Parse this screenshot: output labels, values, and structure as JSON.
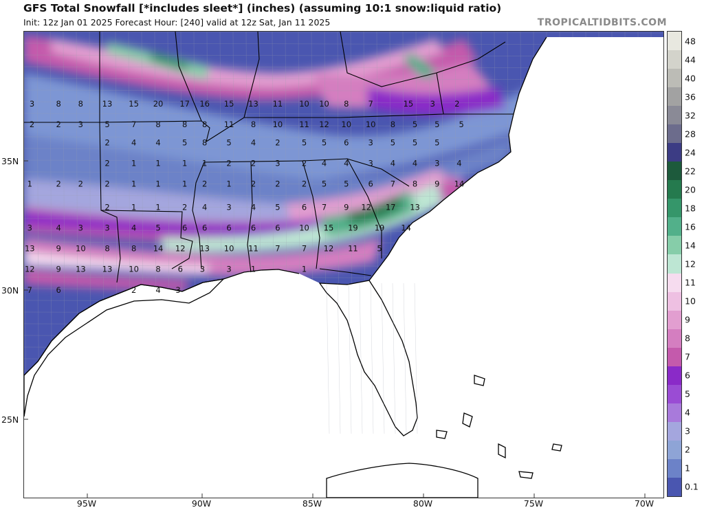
{
  "title": "GFS Total Snowfall [*includes sleet*] (inches) (assuming 10:1 snow:liquid ratio)",
  "subtitle": "Init: 12z Jan 01 2025   Forecast Hour: [240]   valid at 12z Sat, Jan 11 2025",
  "brand": "TROPICALTIDBITS.COM",
  "lat_labels": [
    "35N",
    "30N",
    "25N"
  ],
  "lon_labels": [
    "95W",
    "90W",
    "85W",
    "80W",
    "75W",
    "70W"
  ],
  "colorbar": {
    "labels": [
      "48",
      "44",
      "40",
      "36",
      "32",
      "28",
      "24",
      "22",
      "20",
      "18",
      "16",
      "14",
      "12",
      "11",
      "10",
      "9",
      "8",
      "7",
      "6",
      "5",
      "4",
      "3",
      "2",
      "1",
      "0.1"
    ],
    "colors": [
      "#e8e8e0",
      "#d3d3cb",
      "#bcbcb6",
      "#a2a2a2",
      "#8a8a96",
      "#6c6c8c",
      "#3c3c84",
      "#1d5a3c",
      "#257a4e",
      "#35966a",
      "#52b08a",
      "#86cda9",
      "#bde6d3",
      "#f6dcef",
      "#eec0e2",
      "#e29ed0",
      "#d47ec0",
      "#c45aac",
      "#8a2ac8",
      "#9a4cd4",
      "#a87adb",
      "#a4a6de",
      "#8ea4d6",
      "#6c82c8",
      "#4a56b0"
    ]
  },
  "map_labels": [
    {
      "t": "3",
      "lon": -97.5,
      "lat": 37.1
    },
    {
      "t": "8",
      "lon": -96.3,
      "lat": 37.1
    },
    {
      "t": "8",
      "lon": -95.3,
      "lat": 37.1
    },
    {
      "t": "13",
      "lon": -94.1,
      "lat": 37.1
    },
    {
      "t": "15",
      "lon": -92.9,
      "lat": 37.1
    },
    {
      "t": "20",
      "lon": -91.8,
      "lat": 37.1
    },
    {
      "t": "17",
      "lon": -90.6,
      "lat": 37.1
    },
    {
      "t": "16",
      "lon": -89.7,
      "lat": 37.1
    },
    {
      "t": "15",
      "lon": -88.6,
      "lat": 37.1
    },
    {
      "t": "13",
      "lon": -87.5,
      "lat": 37.1
    },
    {
      "t": "11",
      "lon": -86.4,
      "lat": 37.1
    },
    {
      "t": "10",
      "lon": -85.2,
      "lat": 37.1
    },
    {
      "t": "10",
      "lon": -84.3,
      "lat": 37.1
    },
    {
      "t": "8",
      "lon": -83.3,
      "lat": 37.1
    },
    {
      "t": "7",
      "lon": -82.2,
      "lat": 37.1
    },
    {
      "t": "15",
      "lon": -80.5,
      "lat": 37.1
    },
    {
      "t": "3",
      "lon": -79.4,
      "lat": 37.1
    },
    {
      "t": "2",
      "lon": -78.3,
      "lat": 37.1
    },
    {
      "t": "2",
      "lon": -97.5,
      "lat": 36.3
    },
    {
      "t": "2",
      "lon": -96.3,
      "lat": 36.3
    },
    {
      "t": "3",
      "lon": -95.3,
      "lat": 36.3
    },
    {
      "t": "5",
      "lon": -94.1,
      "lat": 36.3
    },
    {
      "t": "7",
      "lon": -92.9,
      "lat": 36.3
    },
    {
      "t": "8",
      "lon": -91.8,
      "lat": 36.3
    },
    {
      "t": "8",
      "lon": -90.6,
      "lat": 36.3
    },
    {
      "t": "8",
      "lon": -89.7,
      "lat": 36.3
    },
    {
      "t": "11",
      "lon": -88.6,
      "lat": 36.3
    },
    {
      "t": "8",
      "lon": -87.5,
      "lat": 36.3
    },
    {
      "t": "10",
      "lon": -86.4,
      "lat": 36.3
    },
    {
      "t": "11",
      "lon": -85.2,
      "lat": 36.3
    },
    {
      "t": "12",
      "lon": -84.3,
      "lat": 36.3
    },
    {
      "t": "10",
      "lon": -83.3,
      "lat": 36.3
    },
    {
      "t": "10",
      "lon": -82.2,
      "lat": 36.3
    },
    {
      "t": "8",
      "lon": -81.2,
      "lat": 36.3
    },
    {
      "t": "5",
      "lon": -80.2,
      "lat": 36.3
    },
    {
      "t": "5",
      "lon": -79.2,
      "lat": 36.3
    },
    {
      "t": "5",
      "lon": -78.1,
      "lat": 36.3
    },
    {
      "t": "2",
      "lon": -94.1,
      "lat": 35.6
    },
    {
      "t": "4",
      "lon": -92.9,
      "lat": 35.6
    },
    {
      "t": "4",
      "lon": -91.8,
      "lat": 35.6
    },
    {
      "t": "5",
      "lon": -90.6,
      "lat": 35.6
    },
    {
      "t": "8",
      "lon": -89.7,
      "lat": 35.6
    },
    {
      "t": "5",
      "lon": -88.6,
      "lat": 35.6
    },
    {
      "t": "4",
      "lon": -87.5,
      "lat": 35.6
    },
    {
      "t": "2",
      "lon": -86.4,
      "lat": 35.6
    },
    {
      "t": "5",
      "lon": -85.2,
      "lat": 35.6
    },
    {
      "t": "5",
      "lon": -84.3,
      "lat": 35.6
    },
    {
      "t": "6",
      "lon": -83.3,
      "lat": 35.6
    },
    {
      "t": "3",
      "lon": -82.2,
      "lat": 35.6
    },
    {
      "t": "5",
      "lon": -81.2,
      "lat": 35.6
    },
    {
      "t": "5",
      "lon": -80.2,
      "lat": 35.6
    },
    {
      "t": "5",
      "lon": -79.2,
      "lat": 35.6
    },
    {
      "t": "2",
      "lon": -94.1,
      "lat": 34.8
    },
    {
      "t": "1",
      "lon": -92.9,
      "lat": 34.8
    },
    {
      "t": "1",
      "lon": -91.8,
      "lat": 34.8
    },
    {
      "t": "1",
      "lon": -90.6,
      "lat": 34.8
    },
    {
      "t": "1",
      "lon": -89.7,
      "lat": 34.8
    },
    {
      "t": "2",
      "lon": -88.6,
      "lat": 34.8
    },
    {
      "t": "2",
      "lon": -87.5,
      "lat": 34.8
    },
    {
      "t": "3",
      "lon": -86.4,
      "lat": 34.8
    },
    {
      "t": "2",
      "lon": -85.2,
      "lat": 34.8
    },
    {
      "t": "4",
      "lon": -84.3,
      "lat": 34.8
    },
    {
      "t": "4",
      "lon": -83.3,
      "lat": 34.8
    },
    {
      "t": "3",
      "lon": -82.2,
      "lat": 34.8
    },
    {
      "t": "4",
      "lon": -81.2,
      "lat": 34.8
    },
    {
      "t": "4",
      "lon": -80.2,
      "lat": 34.8
    },
    {
      "t": "3",
      "lon": -79.2,
      "lat": 34.8
    },
    {
      "t": "4",
      "lon": -78.2,
      "lat": 34.8
    },
    {
      "t": "1",
      "lon": -97.6,
      "lat": 34.0
    },
    {
      "t": "2",
      "lon": -96.3,
      "lat": 34.0
    },
    {
      "t": "2",
      "lon": -95.3,
      "lat": 34.0
    },
    {
      "t": "2",
      "lon": -94.1,
      "lat": 34.0
    },
    {
      "t": "1",
      "lon": -92.9,
      "lat": 34.0
    },
    {
      "t": "1",
      "lon": -91.8,
      "lat": 34.0
    },
    {
      "t": "1",
      "lon": -90.6,
      "lat": 34.0
    },
    {
      "t": "2",
      "lon": -89.7,
      "lat": 34.0
    },
    {
      "t": "1",
      "lon": -88.6,
      "lat": 34.0
    },
    {
      "t": "2",
      "lon": -87.5,
      "lat": 34.0
    },
    {
      "t": "2",
      "lon": -86.4,
      "lat": 34.0
    },
    {
      "t": "2",
      "lon": -85.2,
      "lat": 34.0
    },
    {
      "t": "5",
      "lon": -84.3,
      "lat": 34.0
    },
    {
      "t": "5",
      "lon": -83.3,
      "lat": 34.0
    },
    {
      "t": "6",
      "lon": -82.2,
      "lat": 34.0
    },
    {
      "t": "7",
      "lon": -81.2,
      "lat": 34.0
    },
    {
      "t": "8",
      "lon": -80.2,
      "lat": 34.0
    },
    {
      "t": "9",
      "lon": -79.2,
      "lat": 34.0
    },
    {
      "t": "14",
      "lon": -78.2,
      "lat": 34.0
    },
    {
      "t": "2",
      "lon": -94.1,
      "lat": 33.1
    },
    {
      "t": "1",
      "lon": -92.9,
      "lat": 33.1
    },
    {
      "t": "1",
      "lon": -91.8,
      "lat": 33.1
    },
    {
      "t": "2",
      "lon": -90.6,
      "lat": 33.1
    },
    {
      "t": "4",
      "lon": -89.7,
      "lat": 33.1
    },
    {
      "t": "3",
      "lon": -88.6,
      "lat": 33.1
    },
    {
      "t": "4",
      "lon": -87.5,
      "lat": 33.1
    },
    {
      "t": "5",
      "lon": -86.4,
      "lat": 33.1
    },
    {
      "t": "6",
      "lon": -85.2,
      "lat": 33.1
    },
    {
      "t": "7",
      "lon": -84.3,
      "lat": 33.1
    },
    {
      "t": "9",
      "lon": -83.3,
      "lat": 33.1
    },
    {
      "t": "12",
      "lon": -82.4,
      "lat": 33.1
    },
    {
      "t": "17",
      "lon": -81.3,
      "lat": 33.1
    },
    {
      "t": "13",
      "lon": -80.2,
      "lat": 33.1
    },
    {
      "t": "3",
      "lon": -97.6,
      "lat": 32.3
    },
    {
      "t": "4",
      "lon": -96.3,
      "lat": 32.3
    },
    {
      "t": "3",
      "lon": -95.3,
      "lat": 32.3
    },
    {
      "t": "3",
      "lon": -94.1,
      "lat": 32.3
    },
    {
      "t": "4",
      "lon": -92.9,
      "lat": 32.3
    },
    {
      "t": "5",
      "lon": -91.8,
      "lat": 32.3
    },
    {
      "t": "6",
      "lon": -90.6,
      "lat": 32.3
    },
    {
      "t": "6",
      "lon": -89.7,
      "lat": 32.3
    },
    {
      "t": "6",
      "lon": -88.6,
      "lat": 32.3
    },
    {
      "t": "6",
      "lon": -87.5,
      "lat": 32.3
    },
    {
      "t": "6",
      "lon": -86.4,
      "lat": 32.3
    },
    {
      "t": "10",
      "lon": -85.2,
      "lat": 32.3
    },
    {
      "t": "15",
      "lon": -84.1,
      "lat": 32.3
    },
    {
      "t": "19",
      "lon": -83.0,
      "lat": 32.3
    },
    {
      "t": "19",
      "lon": -81.8,
      "lat": 32.3
    },
    {
      "t": "14",
      "lon": -80.6,
      "lat": 32.3
    },
    {
      "t": "13",
      "lon": -97.6,
      "lat": 31.5
    },
    {
      "t": "9",
      "lon": -96.3,
      "lat": 31.5
    },
    {
      "t": "10",
      "lon": -95.3,
      "lat": 31.5
    },
    {
      "t": "8",
      "lon": -94.1,
      "lat": 31.5
    },
    {
      "t": "8",
      "lon": -92.9,
      "lat": 31.5
    },
    {
      "t": "14",
      "lon": -91.8,
      "lat": 31.5
    },
    {
      "t": "12",
      "lon": -90.8,
      "lat": 31.5
    },
    {
      "t": "13",
      "lon": -89.7,
      "lat": 31.5
    },
    {
      "t": "10",
      "lon": -88.6,
      "lat": 31.5
    },
    {
      "t": "11",
      "lon": -87.5,
      "lat": 31.5
    },
    {
      "t": "7",
      "lon": -86.4,
      "lat": 31.5
    },
    {
      "t": "7",
      "lon": -85.2,
      "lat": 31.5
    },
    {
      "t": "12",
      "lon": -84.1,
      "lat": 31.5
    },
    {
      "t": "11",
      "lon": -83.0,
      "lat": 31.5
    },
    {
      "t": "5",
      "lon": -81.8,
      "lat": 31.5
    },
    {
      "t": "12",
      "lon": -97.6,
      "lat": 30.7
    },
    {
      "t": "9",
      "lon": -96.3,
      "lat": 30.7
    },
    {
      "t": "13",
      "lon": -95.3,
      "lat": 30.7
    },
    {
      "t": "13",
      "lon": -94.1,
      "lat": 30.7
    },
    {
      "t": "10",
      "lon": -92.9,
      "lat": 30.7
    },
    {
      "t": "8",
      "lon": -91.8,
      "lat": 30.7
    },
    {
      "t": "6",
      "lon": -90.8,
      "lat": 30.7
    },
    {
      "t": "3",
      "lon": -89.8,
      "lat": 30.7
    },
    {
      "t": "3",
      "lon": -88.6,
      "lat": 30.7
    },
    {
      "t": "1",
      "lon": -87.5,
      "lat": 30.7
    },
    {
      "t": "1",
      "lon": -85.2,
      "lat": 30.7
    },
    {
      "t": "7",
      "lon": -97.6,
      "lat": 29.9
    },
    {
      "t": "6",
      "lon": -96.3,
      "lat": 29.9
    },
    {
      "t": "2",
      "lon": -92.9,
      "lat": 29.9
    },
    {
      "t": "4",
      "lon": -91.8,
      "lat": 29.9
    },
    {
      "t": "3",
      "lon": -90.9,
      "lat": 29.9
    }
  ]
}
